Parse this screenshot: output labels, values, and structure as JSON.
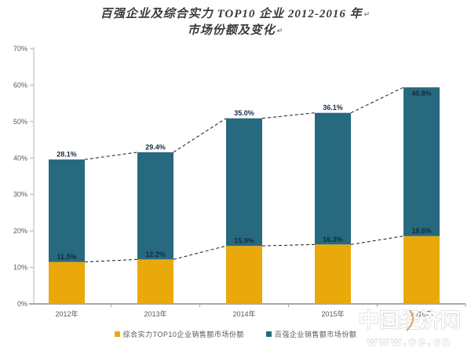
{
  "title": {
    "line1": "百强企业及综合实力 TOP10 企业 2012-2016 年",
    "line2": "市场份额及变化",
    "return_mark": "↵"
  },
  "chart_data": {
    "type": "bar",
    "stacked": true,
    "categories": [
      "2012年",
      "2013年",
      "2014年",
      "2015年",
      "2016年"
    ],
    "series": [
      {
        "name": "综合实力TOP10企业销售额市场份额",
        "color": "#EAA90B",
        "values": [
          11.5,
          12.2,
          15.9,
          16.3,
          18.6
        ],
        "labels": [
          "11.5%",
          "12.2%",
          "15.9%",
          "16.3%",
          "18.6%"
        ]
      },
      {
        "name": "百强企业销售额市场份额",
        "color": "#27697E",
        "values": [
          28.1,
          29.4,
          35.0,
          36.1,
          40.8
        ],
        "labels": [
          "28.1%",
          "29.4%",
          "35.0%",
          "36.1%",
          "40.8%"
        ]
      }
    ],
    "totals": [
      39.6,
      41.6,
      50.9,
      52.4,
      59.4
    ],
    "y_axis": {
      "ticks": [
        "0%",
        "10%",
        "20%",
        "30%",
        "40%",
        "50%",
        "60%",
        "70%"
      ],
      "min": 0,
      "max": 70,
      "grid": false
    },
    "legend_position": "bottom",
    "annotations": "dashed connector lines join the tops of the stacked segments between adjacent bars"
  },
  "colors": {
    "axis_text": "#595959",
    "axis_line_x": "#a8a8a8",
    "axis_line_y": "#b3b3b3",
    "data_label": "#152C44",
    "connector": "#1a1a1a"
  },
  "watermark": {
    "site_name": "中国经济网",
    "site_url": "www.ce.cn"
  }
}
